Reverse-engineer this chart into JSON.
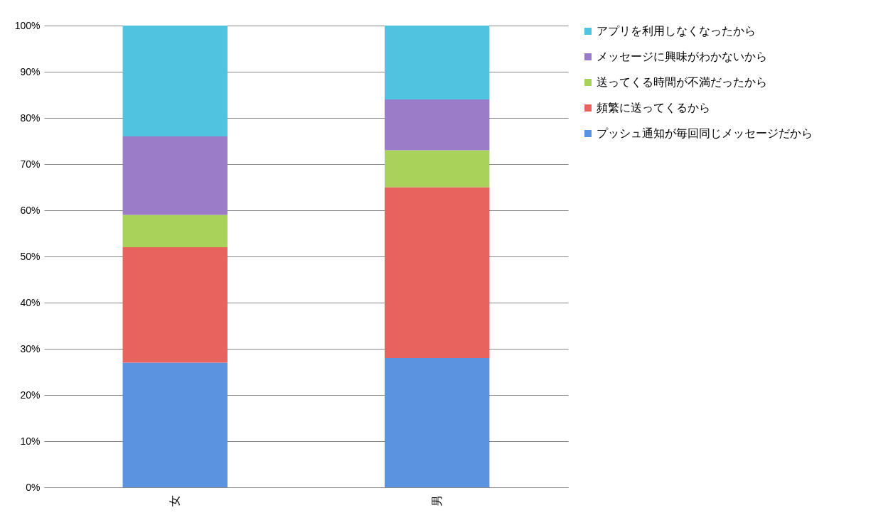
{
  "chart_data": {
    "type": "bar",
    "stacked": true,
    "categories": [
      "女",
      "男"
    ],
    "series": [
      {
        "name": "プッシュ通知が毎回同じメッセージだから",
        "color": "#5b93e0",
        "values": [
          27,
          28
        ]
      },
      {
        "name": "頻繁に送ってくるから",
        "color": "#e8625e",
        "values": [
          25,
          37
        ]
      },
      {
        "name": "送ってくる時間が不満だったから",
        "color": "#a8d25a",
        "values": [
          7,
          8
        ]
      },
      {
        "name": "メッセージに興味がわかないから",
        "color": "#9a7cc8",
        "values": [
          17,
          11
        ]
      },
      {
        "name": "アプリを利用しなくなったから",
        "color": "#4fc3e0",
        "values": [
          24,
          16
        ]
      }
    ],
    "ylim": [
      0,
      100
    ],
    "yticks": [
      {
        "value": 0,
        "label": "0%"
      },
      {
        "value": 10,
        "label": "10%"
      },
      {
        "value": 20,
        "label": "20%"
      },
      {
        "value": 30,
        "label": "30%"
      },
      {
        "value": 40,
        "label": "40%"
      },
      {
        "value": 50,
        "label": "50%"
      },
      {
        "value": 60,
        "label": "60%"
      },
      {
        "value": 70,
        "label": "70%"
      },
      {
        "value": 80,
        "label": "80%"
      },
      {
        "value": 90,
        "label": "90%"
      },
      {
        "value": 100,
        "label": "100%"
      }
    ],
    "grid": "y",
    "legend": "right"
  }
}
